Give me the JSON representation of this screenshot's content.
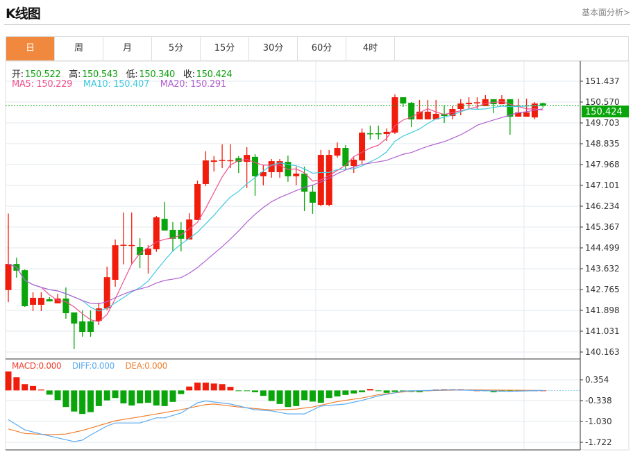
{
  "header": {
    "title": "K线图",
    "fundamental_link": "基本面分析>"
  },
  "tabs": [
    {
      "label": "日",
      "active": true
    },
    {
      "label": "周"
    },
    {
      "label": "月"
    },
    {
      "label": "5分"
    },
    {
      "label": "15分"
    },
    {
      "label": "30分"
    },
    {
      "label": "60分"
    },
    {
      "label": "4时"
    }
  ],
  "ohlc_legend": {
    "open_label": "开:",
    "open": "150.522",
    "high_label": "高:",
    "high": "150.543",
    "low_label": "低:",
    "low": "150.340",
    "close_label": "收:",
    "close": "150.424"
  },
  "ma_legend": {
    "ma5": "MA5: 150.229",
    "ma10": "MA10: 150.407",
    "ma20": "MA20: 150.291"
  },
  "macd_legend": {
    "macd": "MACD:0.000",
    "diff": "DIFF:0.000",
    "dea": "DEA:0.000"
  },
  "current_price": "150.424",
  "colors": {
    "up": "#f01c0c",
    "down": "#0aa50a",
    "ma5": "#f0508c",
    "ma10": "#40c8e0",
    "ma20": "#b060d0",
    "diff": "#5aaaf0",
    "dea": "#f08030",
    "accent": "#f0893d",
    "price_label": "#0aa50a"
  },
  "chart_data": [
    {
      "type": "candlestick",
      "ylim": [
        140.163,
        151.437
      ],
      "yticks": [
        "151.437",
        "150.570",
        "149.703",
        "148.835",
        "147.968",
        "147.101",
        "146.234",
        "145.367",
        "144.499",
        "143.632",
        "142.765",
        "141.898",
        "141.031",
        "140.163"
      ],
      "grid": true,
      "ohlc": [
        [
          142.74,
          145.93,
          142.24,
          143.83
        ],
        [
          143.83,
          144.09,
          143.26,
          143.55
        ],
        [
          143.57,
          143.6,
          142.04,
          142.07
        ],
        [
          142.13,
          142.65,
          141.87,
          142.42
        ],
        [
          142.13,
          142.65,
          141.87,
          142.42
        ],
        [
          142.36,
          142.45,
          142.27,
          142.27
        ],
        [
          142.19,
          142.59,
          142.19,
          142.39
        ],
        [
          142.39,
          142.85,
          141.55,
          141.78
        ],
        [
          141.81,
          141.81,
          140.28,
          141.35
        ],
        [
          141.44,
          141.9,
          140.8,
          141.0
        ],
        [
          141.44,
          141.9,
          140.8,
          141.0
        ],
        [
          141.46,
          142.22,
          141.29,
          141.98
        ],
        [
          141.98,
          143.72,
          141.9,
          143.28
        ],
        [
          143.17,
          144.85,
          142.88,
          144.61
        ],
        [
          144.61,
          145.97,
          143.81,
          144.63
        ],
        [
          144.61,
          145.97,
          143.84,
          144.62
        ],
        [
          144.53,
          144.9,
          143.66,
          144.21
        ],
        [
          144.21,
          144.61,
          143.43,
          144.47
        ],
        [
          144.44,
          145.83,
          144.33,
          145.77
        ],
        [
          145.71,
          146.41,
          145.22,
          145.22
        ],
        [
          145.25,
          145.57,
          144.35,
          144.88
        ],
        [
          145.25,
          145.57,
          144.35,
          144.88
        ],
        [
          144.85,
          145.94,
          144.85,
          145.68
        ],
        [
          145.66,
          147.3,
          145.66,
          147.16
        ],
        [
          147.16,
          148.52,
          147.07,
          148.14
        ],
        [
          148.08,
          148.32,
          147.68,
          148.14
        ],
        [
          148.14,
          148.81,
          147.82,
          148.16
        ],
        [
          148.14,
          148.81,
          147.82,
          148.15
        ],
        [
          148.23,
          148.32,
          147.62,
          148.08
        ],
        [
          148.08,
          148.69,
          146.99,
          148.37
        ],
        [
          148.29,
          148.4,
          146.67,
          147.48
        ],
        [
          147.48,
          147.94,
          147.1,
          147.65
        ],
        [
          147.65,
          148.2,
          147.42,
          148.11
        ],
        [
          147.65,
          148.2,
          147.42,
          148.11
        ],
        [
          148.08,
          148.34,
          147.25,
          147.48
        ],
        [
          147.48,
          147.88,
          147.1,
          147.59
        ],
        [
          147.59,
          147.88,
          146.03,
          146.84
        ],
        [
          146.84,
          147.1,
          145.92,
          146.38
        ],
        [
          146.29,
          148.58,
          146.23,
          148.37
        ],
        [
          146.29,
          148.58,
          146.23,
          148.37
        ],
        [
          148.34,
          148.89,
          148.26,
          148.66
        ],
        [
          148.66,
          148.78,
          147.79,
          147.91
        ],
        [
          147.91,
          148.26,
          147.62,
          148.17
        ],
        [
          148.14,
          149.47,
          147.97,
          149.3
        ],
        [
          149.27,
          149.59,
          149.01,
          149.25
        ],
        [
          149.27,
          149.59,
          149.01,
          149.25
        ],
        [
          149.24,
          149.47,
          148.95,
          149.33
        ],
        [
          149.3,
          150.89,
          149.24,
          150.77
        ],
        [
          150.77,
          150.77,
          150.37,
          150.51
        ],
        [
          150.54,
          150.57,
          149.53,
          149.85
        ],
        [
          149.85,
          150.66,
          149.85,
          150.17
        ],
        [
          149.85,
          150.66,
          149.85,
          150.17
        ],
        [
          149.85,
          150.66,
          149.85,
          150.08
        ],
        [
          150.08,
          150.42,
          149.7,
          149.99
        ],
        [
          149.99,
          150.4,
          149.85,
          150.28
        ],
        [
          150.28,
          150.69,
          150.02,
          150.51
        ],
        [
          150.48,
          150.77,
          150.28,
          150.54
        ],
        [
          150.54,
          150.77,
          150.28,
          150.56
        ],
        [
          150.4,
          150.86,
          150.4,
          150.69
        ],
        [
          150.69,
          150.69,
          150.11,
          150.48
        ],
        [
          150.48,
          150.86,
          150.48,
          150.69
        ],
        [
          150.69,
          150.69,
          149.21,
          149.96
        ],
        [
          149.96,
          150.71,
          149.96,
          150.14
        ],
        [
          149.96,
          150.71,
          149.96,
          150.14
        ],
        [
          149.93,
          150.57,
          149.85,
          150.51
        ],
        [
          150.522,
          150.543,
          150.34,
          150.424
        ]
      ],
      "moving_averages": [
        5,
        10,
        20
      ]
    },
    {
      "type": "macd",
      "ylim": [
        -1.722,
        0.354
      ],
      "yticks": [
        "0.354",
        "-0.338",
        "-1.030",
        "-1.722"
      ],
      "histogram": [
        0.63,
        0.44,
        0.21,
        0.15,
        0.03,
        -0.14,
        -0.32,
        -0.55,
        -0.7,
        -0.78,
        -0.72,
        -0.52,
        -0.33,
        -0.25,
        -0.43,
        -0.5,
        -0.43,
        -0.41,
        -0.5,
        -0.52,
        -0.38,
        -0.12,
        0.13,
        0.26,
        0.26,
        0.23,
        0.21,
        0.12,
        -0.01,
        -0.02,
        -0.06,
        -0.18,
        -0.35,
        -0.45,
        -0.55,
        -0.52,
        -0.32,
        -0.37,
        -0.41,
        -0.25,
        -0.2,
        -0.15,
        -0.1,
        -0.06,
        0.05,
        -0.02,
        -0.08,
        -0.05,
        -0.05,
        -0.05,
        -0.06,
        -0.02,
        0.03,
        0.04,
        0.04,
        0.04,
        0.02,
        0.0,
        -0.02,
        -0.06,
        -0.04,
        -0.02,
        -0.01,
        0.0,
        0.0,
        0.0
      ],
      "diff": [
        [
          1,
          -0.97
        ],
        [
          3,
          -1.31
        ],
        [
          5,
          -1.45
        ],
        [
          9,
          -1.7
        ],
        [
          10,
          -1.65
        ],
        [
          11,
          -1.48
        ],
        [
          13,
          -1.18
        ],
        [
          14,
          -1.08
        ],
        [
          17,
          -1.08
        ],
        [
          19,
          -0.91
        ],
        [
          20,
          -0.91
        ],
        [
          22,
          -0.75
        ],
        [
          24,
          -0.41
        ],
        [
          25,
          -0.35
        ],
        [
          28,
          -0.45
        ],
        [
          31,
          -0.64
        ],
        [
          33,
          -0.68
        ],
        [
          35,
          -0.78
        ],
        [
          37,
          -0.78
        ],
        [
          39,
          -0.52
        ],
        [
          42,
          -0.45
        ],
        [
          44,
          -0.33
        ],
        [
          46,
          -0.18
        ],
        [
          48,
          -0.08
        ],
        [
          49,
          -0.02
        ],
        [
          55,
          0.02
        ],
        [
          62,
          -0.03
        ],
        [
          66,
          0.0
        ]
      ],
      "dea": [
        [
          1,
          -1.28
        ],
        [
          3,
          -1.43
        ],
        [
          6,
          -1.47
        ],
        [
          8,
          -1.45
        ],
        [
          10,
          -1.33
        ],
        [
          14,
          -1.01
        ],
        [
          18,
          -0.83
        ],
        [
          22,
          -0.64
        ],
        [
          25,
          -0.47
        ],
        [
          26,
          -0.45
        ],
        [
          29,
          -0.55
        ],
        [
          33,
          -0.65
        ],
        [
          36,
          -0.62
        ],
        [
          38,
          -0.55
        ],
        [
          41,
          -0.37
        ],
        [
          44,
          -0.25
        ],
        [
          46,
          -0.14
        ],
        [
          50,
          -0.02
        ],
        [
          57,
          0.02
        ],
        [
          66,
          0.0
        ]
      ]
    }
  ]
}
